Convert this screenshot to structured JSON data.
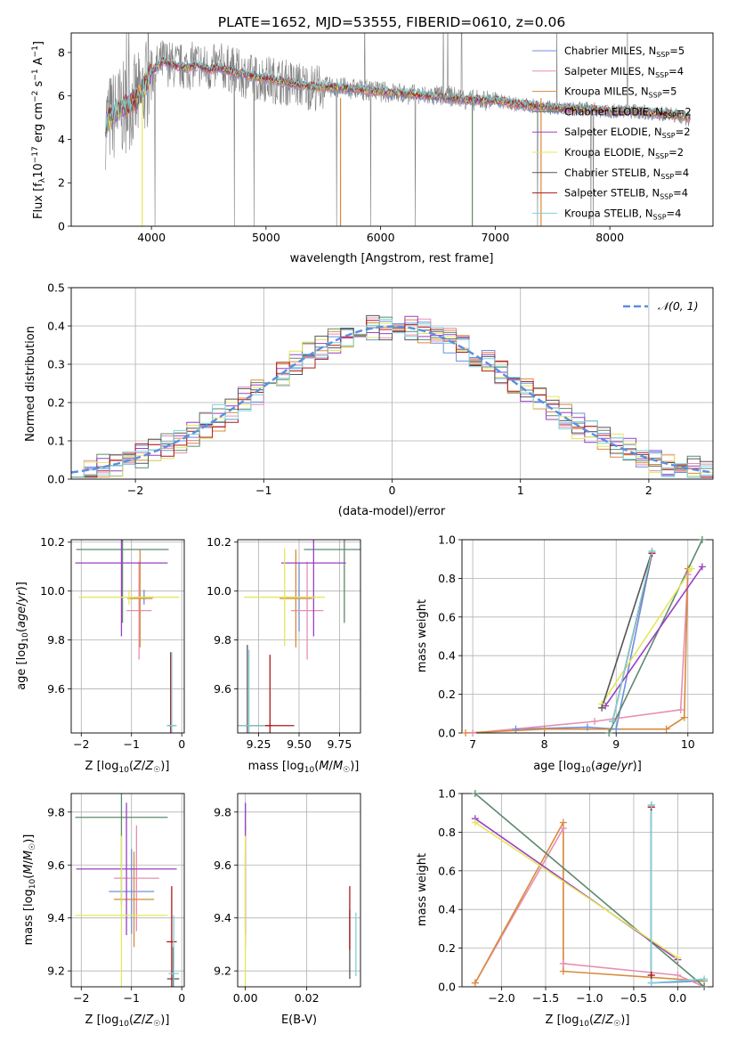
{
  "title": "PLATE=1652, MJD=53555, FIBERID=0610, z=0.06",
  "legend": {
    "spectrum": [
      {
        "label": "Chabrier MILES, N",
        "sub": "SSP",
        "suffix": "=5",
        "color": "#6b8fe0"
      },
      {
        "label": "Salpeter MILES, N",
        "sub": "SSP",
        "suffix": "=4",
        "color": "#e68fb3"
      },
      {
        "label": "Kroupa MILES, N",
        "sub": "SSP",
        "suffix": "=5",
        "color": "#d98a3c"
      },
      {
        "label": "Chabrier ELODIE, N",
        "sub": "SSP",
        "suffix": "=2",
        "color": "#5e8a6e"
      },
      {
        "label": "Salpeter ELODIE, N",
        "sub": "SSP",
        "suffix": "=2",
        "color": "#9b3fc4"
      },
      {
        "label": "Kroupa ELODIE, N",
        "sub": "SSP",
        "suffix": "=2",
        "color": "#e3e85a"
      },
      {
        "label": "Chabrier STELIB, N",
        "sub": "SSP",
        "suffix": "=4",
        "color": "#555555"
      },
      {
        "label": "Salpeter STELIB, N",
        "sub": "SSP",
        "suffix": "=4",
        "color": "#b01818"
      },
      {
        "label": "Kroupa STELIB, N",
        "sub": "SSP",
        "suffix": "=4",
        "color": "#7fd1d9"
      }
    ],
    "residual": "𝒩(0, 1)"
  },
  "chart_data": [
    {
      "type": "line",
      "panel": "spectrum",
      "xlabel": "wavelength [Angstrom, rest frame]",
      "ylabel": "Flux [f_λ 10^-17 erg cm^-2 s^-1 A^-1]",
      "xlim": [
        3300,
        8900
      ],
      "ylim": [
        0,
        8.9
      ],
      "xticks": [
        4000,
        5000,
        6000,
        7000,
        8000
      ],
      "yticks": [
        0,
        2,
        4,
        6,
        8
      ],
      "data_x": [
        3600,
        3700,
        3800,
        3900,
        4000,
        4100,
        4200,
        4300,
        4400,
        4500,
        4600,
        4700,
        4800,
        4900,
        5000,
        5200,
        5400,
        5600,
        5800,
        6000,
        6200,
        6400,
        6600,
        6800,
        7000,
        7200,
        7400,
        7600,
        7800,
        8000,
        8200,
        8400,
        8600,
        8700
      ],
      "data_y": [
        4.8,
        5.2,
        5.6,
        5.9,
        7.0,
        7.6,
        7.4,
        7.3,
        7.5,
        7.2,
        7.4,
        7.2,
        7.0,
        6.8,
        6.8,
        6.6,
        6.4,
        6.4,
        6.3,
        6.2,
        6.1,
        6.0,
        6.0,
        5.8,
        5.8,
        5.6,
        5.5,
        5.4,
        5.4,
        5.3,
        5.3,
        5.2,
        5.1,
        4.9
      ],
      "model_x": [
        3600,
        3650,
        3700,
        3800,
        3900,
        4000,
        4100,
        4200,
        4300,
        4400,
        4500,
        4600,
        4700,
        4800,
        4900,
        5000,
        5200,
        5400,
        5600,
        5800,
        6000,
        6200,
        6400,
        6600,
        6800,
        7000,
        7200,
        7400,
        7600,
        7800,
        8000,
        8200,
        8400,
        8600,
        8700
      ],
      "model_y": [
        4.7,
        5.0,
        5.3,
        5.6,
        6.0,
        7.1,
        7.6,
        7.4,
        7.3,
        7.4,
        7.2,
        7.3,
        7.1,
        7.0,
        6.9,
        6.8,
        6.6,
        6.4,
        6.4,
        6.3,
        6.2,
        6.1,
        6.0,
        5.9,
        5.8,
        5.8,
        5.6,
        5.5,
        5.4,
        5.4,
        5.3,
        5.3,
        5.2,
        5.1,
        5.0
      ]
    },
    {
      "type": "line",
      "panel": "residual",
      "xlabel": "(data-model)/error",
      "ylabel": "Normed distribution",
      "xlim": [
        -2.5,
        2.5
      ],
      "ylim": [
        0,
        0.5
      ],
      "xticks": [
        -2,
        -1,
        0,
        1,
        2
      ],
      "yticks": [
        0.0,
        0.1,
        0.2,
        0.3,
        0.4,
        0.5
      ],
      "bin_width": 0.1,
      "series": [
        {
          "name": "𝒩(0, 1)",
          "type": "dashed",
          "color": "#5b8ee0"
        }
      ]
    },
    {
      "type": "scatter",
      "panel": "age-vs-Z",
      "xlabel": "Z [log10(Z/Z☉)]",
      "ylabel": "age [log10(age/yr)]",
      "xlim": [
        -2.2,
        0.05
      ],
      "ylim": [
        9.42,
        10.21
      ],
      "xticks": [
        -2,
        -1,
        0
      ],
      "yticks": [
        9.6,
        9.8,
        10.0,
        10.2
      ],
      "points": [
        {
          "x": -0.75,
          "y": 9.975,
          "xerr": 0.2,
          "yerr": 0.03,
          "color": "#6b8fe0"
        },
        {
          "x": -0.85,
          "y": 9.92,
          "xerr": 0.25,
          "yerr": 0.2,
          "color": "#e68fb3"
        },
        {
          "x": -0.83,
          "y": 9.97,
          "xerr": 0.25,
          "yerr": 0.2,
          "color": "#d98a3c"
        },
        {
          "x": -1.18,
          "y": 10.17,
          "xerr": 0.92,
          "yerr": 0.3,
          "color": "#5e8a6e"
        },
        {
          "x": -1.2,
          "y": 10.115,
          "xerr": 0.92,
          "yerr": 0.3,
          "color": "#9b3fc4"
        },
        {
          "x": -1.05,
          "y": 9.975,
          "xerr": 1.0,
          "yerr": 0.03,
          "color": "#e3e85a"
        },
        {
          "x": -0.2,
          "y": 9.45,
          "xerr": 0.08,
          "yerr": 0.3,
          "color": "#555555"
        },
        {
          "x": -0.22,
          "y": 9.45,
          "xerr": 0.05,
          "yerr": 0.3,
          "color": "#b01818"
        },
        {
          "x": -0.2,
          "y": 9.45,
          "xerr": 0.1,
          "yerr": 0.3,
          "color": "#7fd1d9"
        }
      ]
    },
    {
      "type": "scatter",
      "panel": "age-vs-mass",
      "xlabel": "mass [log10(M/M☉)]",
      "ylabel": "",
      "xlim": [
        9.12,
        9.88
      ],
      "ylim": [
        9.42,
        10.21
      ],
      "xticks": [
        9.25,
        9.5,
        9.75
      ],
      "yticks": [
        9.6,
        9.8,
        10.0,
        10.2
      ],
      "points": [
        {
          "x": 9.5,
          "y": 9.975,
          "xerr": 0.1,
          "yerr": 0.14,
          "color": "#6b8fe0"
        },
        {
          "x": 9.55,
          "y": 9.92,
          "xerr": 0.1,
          "yerr": 0.2,
          "color": "#e68fb3"
        },
        {
          "x": 9.48,
          "y": 9.97,
          "xerr": 0.1,
          "yerr": 0.2,
          "color": "#d98a3c"
        },
        {
          "x": 9.78,
          "y": 10.17,
          "xerr": 0.25,
          "yerr": 0.3,
          "color": "#5e8a6e"
        },
        {
          "x": 9.59,
          "y": 10.115,
          "xerr": 0.2,
          "yerr": 0.3,
          "color": "#9b3fc4"
        },
        {
          "x": 9.41,
          "y": 9.975,
          "xerr": 0.25,
          "yerr": 0.2,
          "color": "#e3e85a"
        },
        {
          "x": 9.18,
          "y": 9.45,
          "xerr": 0.15,
          "yerr": 0.33,
          "color": "#555555"
        },
        {
          "x": 9.32,
          "y": 9.45,
          "xerr": 0.15,
          "yerr": 0.29,
          "color": "#b01818"
        },
        {
          "x": 9.19,
          "y": 9.45,
          "xerr": 0.1,
          "yerr": 0.31,
          "color": "#7fd1d9"
        }
      ]
    },
    {
      "type": "line",
      "panel": "weight-vs-age",
      "xlabel": "age [log10(age/yr)]",
      "ylabel": "mass weight",
      "xlim": [
        6.85,
        10.35
      ],
      "ylim": [
        0,
        1
      ],
      "xticks": [
        7,
        8,
        9,
        10
      ],
      "yticks": [
        0.0,
        0.2,
        0.4,
        0.6,
        0.8,
        1.0
      ],
      "series": [
        {
          "color": "#6b8fe0",
          "x": [
            7.6,
            8.6,
            9.0,
            9.5
          ],
          "y": [
            0.02,
            0.03,
            0.02,
            0.93
          ]
        },
        {
          "color": "#e68fb3",
          "x": [
            7.0,
            8.7,
            9.9,
            10.0
          ],
          "y": [
            0.0,
            0.06,
            0.12,
            0.82
          ]
        },
        {
          "color": "#d98a3c",
          "x": [
            6.9,
            8.0,
            9.7,
            9.95,
            10.0
          ],
          "y": [
            0.0,
            0.02,
            0.02,
            0.08,
            0.85
          ]
        },
        {
          "color": "#5e8a6e",
          "x": [
            8.9,
            10.2
          ],
          "y": [
            0.0,
            1.0
          ]
        },
        {
          "color": "#9b3fc4",
          "x": [
            8.85,
            10.2
          ],
          "y": [
            0.14,
            0.86
          ]
        },
        {
          "color": "#e3e85a",
          "x": [
            8.8,
            10.05
          ],
          "y": [
            0.15,
            0.85
          ]
        },
        {
          "color": "#555555",
          "x": [
            8.8,
            9.5
          ],
          "y": [
            0.13,
            0.94
          ]
        },
        {
          "color": "#b01818",
          "x": [
            8.95,
            9.5
          ],
          "y": [
            0.06,
            0.93
          ]
        },
        {
          "color": "#7fd1d9",
          "x": [
            8.95,
            9.5
          ],
          "y": [
            0.06,
            0.94
          ]
        }
      ]
    },
    {
      "type": "scatter",
      "panel": "mass-vs-Z",
      "xlabel": "Z [log10(Z/Z☉)]",
      "ylabel": "mass [log10(M/M☉)]",
      "xlim": [
        -2.2,
        0.05
      ],
      "ylim": [
        9.14,
        9.87
      ],
      "xticks": [
        -2,
        -1,
        0
      ],
      "yticks": [
        9.2,
        9.4,
        9.6,
        9.8
      ],
      "points": [
        {
          "x": -1.0,
          "y": 9.5,
          "xerr": 0.45,
          "yerr": 0.16,
          "color": "#6b8fe0"
        },
        {
          "x": -0.9,
          "y": 9.55,
          "xerr": 0.45,
          "yerr": 0.2,
          "color": "#e68fb3"
        },
        {
          "x": -0.95,
          "y": 9.47,
          "xerr": 0.4,
          "yerr": 0.18,
          "color": "#d98a3c"
        },
        {
          "x": -1.2,
          "y": 9.78,
          "xerr": 0.92,
          "yerr": 0.33,
          "color": "#5e8a6e"
        },
        {
          "x": -1.1,
          "y": 9.585,
          "xerr": 1.0,
          "yerr": 0.25,
          "color": "#9b3fc4"
        },
        {
          "x": -1.2,
          "y": 9.41,
          "xerr": 0.92,
          "yerr": 0.3,
          "color": "#e3e85a"
        },
        {
          "x": -0.17,
          "y": 9.17,
          "xerr": 0.12,
          "yerr": 0.12,
          "color": "#555555"
        },
        {
          "x": -0.2,
          "y": 9.31,
          "xerr": 0.1,
          "yerr": 0.21,
          "color": "#b01818"
        },
        {
          "x": -0.16,
          "y": 9.19,
          "xerr": 0.1,
          "yerr": 0.22,
          "color": "#7fd1d9"
        }
      ]
    },
    {
      "type": "scatter",
      "panel": "mass-vs-EBV",
      "xlabel": "E(B-V)",
      "ylabel": "",
      "xlim": [
        -0.0025,
        0.0375
      ],
      "ylim": [
        9.14,
        9.87
      ],
      "xticks": [
        0.0,
        0.02
      ],
      "yticks": [
        9.2,
        9.4,
        9.6,
        9.8
      ],
      "points": [
        {
          "x": 0.0,
          "y": 9.5,
          "yerr": 0.16,
          "color": "#6b8fe0"
        },
        {
          "x": 0.0,
          "y": 9.55,
          "yerr": 0.2,
          "color": "#e68fb3"
        },
        {
          "x": 0.0,
          "y": 9.47,
          "yerr": 0.18,
          "color": "#d98a3c"
        },
        {
          "x": 0.0,
          "y": 9.78,
          "yerr": 0.05,
          "color": "#5e8a6e"
        },
        {
          "x": 0.0,
          "y": 9.585,
          "yerr": 0.25,
          "color": "#9b3fc4"
        },
        {
          "x": 0.0,
          "y": 9.41,
          "yerr": 0.3,
          "color": "#e3e85a"
        },
        {
          "x": 0.034,
          "y": 9.3,
          "yerr": 0.13,
          "color": "#555555"
        },
        {
          "x": 0.034,
          "y": 9.4,
          "yerr": 0.12,
          "color": "#b01818"
        },
        {
          "x": 0.036,
          "y": 9.3,
          "yerr": 0.12,
          "color": "#7fd1d9"
        }
      ]
    },
    {
      "type": "line",
      "panel": "weight-vs-Z",
      "xlabel": "Z [log10(Z/Z☉)]",
      "ylabel": "mass weight",
      "xlim": [
        -2.45,
        0.4
      ],
      "ylim": [
        0,
        1
      ],
      "xticks": [
        -2.0,
        -1.5,
        -1.0,
        -0.5,
        0.0
      ],
      "yticks": [
        0.0,
        0.2,
        0.4,
        0.6,
        0.8,
        1.0
      ],
      "series": [
        {
          "color": "#6b8fe0",
          "x": [
            -0.3,
            -0.3,
            0.3
          ],
          "y": [
            0.93,
            0.02,
            0.03
          ]
        },
        {
          "color": "#e68fb3",
          "x": [
            -2.3,
            -1.3,
            -1.3,
            0.0,
            0.3
          ],
          "y": [
            0.02,
            0.82,
            0.12,
            0.06,
            0.0
          ]
        },
        {
          "color": "#d98a3c",
          "x": [
            -2.3,
            -1.3,
            -1.3,
            0.3
          ],
          "y": [
            0.02,
            0.85,
            0.08,
            0.03
          ]
        },
        {
          "color": "#5e8a6e",
          "x": [
            -2.3,
            0.3
          ],
          "y": [
            1.0,
            0.0
          ]
        },
        {
          "color": "#9b3fc4",
          "x": [
            -2.3,
            0.0
          ],
          "y": [
            0.87,
            0.14
          ]
        },
        {
          "color": "#e3e85a",
          "x": [
            -2.3,
            0.0
          ],
          "y": [
            0.85,
            0.15
          ]
        },
        {
          "color": "#555555",
          "x": [
            -0.3,
            -0.3
          ],
          "y": [
            0.94,
            0.06
          ]
        },
        {
          "color": "#b01818",
          "x": [
            -0.3,
            -0.3
          ],
          "y": [
            0.93,
            0.06
          ]
        },
        {
          "color": "#7fd1d9",
          "x": [
            -0.3,
            -0.3,
            0.3
          ],
          "y": [
            0.94,
            0.02,
            0.04
          ]
        }
      ]
    }
  ]
}
